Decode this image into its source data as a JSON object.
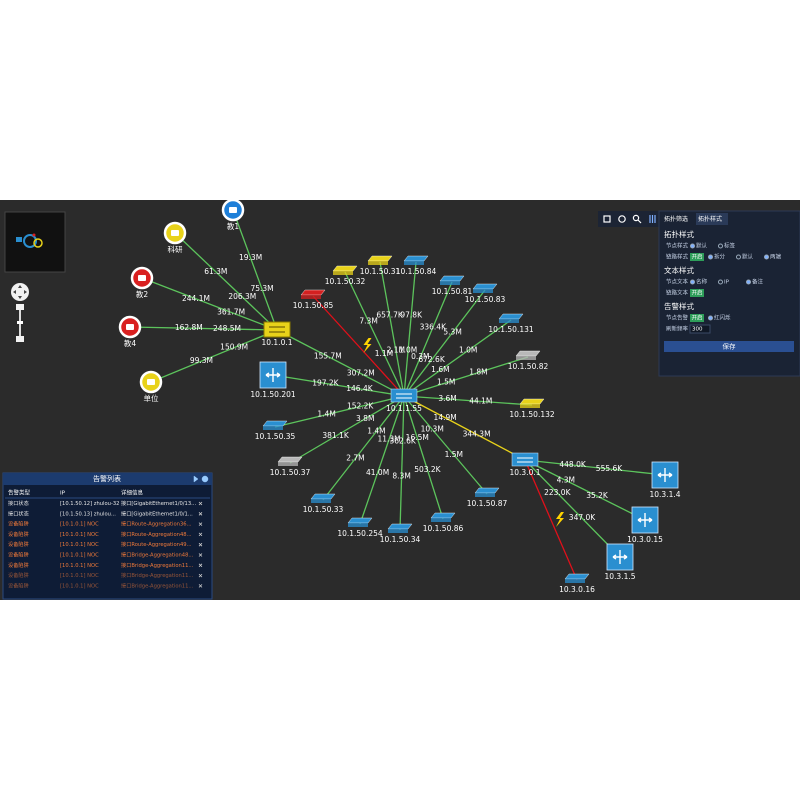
{
  "topology": {
    "nodes": [
      {
        "label": "教1",
        "icon": "circle",
        "color": "#1e7fd8"
      },
      {
        "label": "科研",
        "icon": "circle",
        "color": "#e8d21a"
      },
      {
        "label": "教2",
        "icon": "circle",
        "color": "#d92020"
      },
      {
        "label": "教4",
        "icon": "circle",
        "color": "#d92020"
      },
      {
        "label": "单位",
        "icon": "circle",
        "color": "#e8d21a"
      },
      {
        "label": "10.1.0.1",
        "icon": "router",
        "color": "#e8d21a"
      },
      {
        "label": "10.1.50.85",
        "icon": "switch",
        "color": "#d42020"
      },
      {
        "label": "10.1.50.32",
        "icon": "switch",
        "color": "#e8d21a"
      },
      {
        "label": "10.1.50.31",
        "icon": "switch",
        "color": "#e8d21a"
      },
      {
        "label": "10.1.50.84",
        "icon": "switch",
        "color": "#2a8fd0"
      },
      {
        "label": "10.1.50.81",
        "icon": "switch",
        "color": "#2a8fd0"
      },
      {
        "label": "10.1.50.83",
        "icon": "switch",
        "color": "#2a8fd0"
      },
      {
        "label": "10.1.50.131",
        "icon": "switch",
        "color": "#2a8fd0"
      },
      {
        "label": "10.1.50.82",
        "icon": "switch",
        "color": "#b8b8b8"
      },
      {
        "label": "10.1.50.132",
        "icon": "switch",
        "color": "#e8d21a"
      },
      {
        "label": "10.1.50.201",
        "icon": "l3",
        "color": "#2a8fd0"
      },
      {
        "label": "10.1.1.55",
        "icon": "core",
        "color": "#2a8fd0"
      },
      {
        "label": "10.1.50.35",
        "icon": "switch",
        "color": "#2a8fd0"
      },
      {
        "label": "10.1.50.37",
        "icon": "switch",
        "color": "#b8b8b8"
      },
      {
        "label": "10.1.50.33",
        "icon": "switch",
        "color": "#2a8fd0"
      },
      {
        "label": "10.1.50.254",
        "icon": "switch",
        "color": "#2a8fd0"
      },
      {
        "label": "10.1.50.34",
        "icon": "switch",
        "color": "#2a8fd0"
      },
      {
        "label": "10.1.50.86",
        "icon": "switch",
        "color": "#2a8fd0"
      },
      {
        "label": "10.1.50.87",
        "icon": "switch",
        "color": "#2a8fd0"
      },
      {
        "label": "10.3.0.1",
        "icon": "core",
        "color": "#2a8fd0"
      },
      {
        "label": "10.3.1.4",
        "icon": "l3",
        "color": "#2a8fd0"
      },
      {
        "label": "10.3.0.15",
        "icon": "l3",
        "color": "#2a8fd0"
      },
      {
        "label": "10.3.1.5",
        "icon": "l3",
        "color": "#2a8fd0"
      },
      {
        "label": "10.3.0.16",
        "icon": "switch",
        "color": "#2a8fd0"
      }
    ],
    "edges": [
      {
        "from": "教1",
        "to": "10.1.0.1",
        "color": "#5cc45c",
        "labels": [
          "19.3M",
          "75.3M"
        ]
      },
      {
        "from": "科研",
        "to": "10.1.0.1",
        "color": "#5cc45c",
        "labels": [
          "61.3M",
          "206.3M"
        ]
      },
      {
        "from": "教2",
        "to": "10.1.0.1",
        "color": "#5cc45c",
        "labels": [
          "244.1M",
          "361.7M"
        ]
      },
      {
        "from": "教4",
        "to": "10.1.0.1",
        "color": "#5cc45c",
        "labels": [
          "162.8M",
          "248.5M"
        ]
      },
      {
        "from": "单位",
        "to": "10.1.0.1",
        "color": "#5cc45c",
        "labels": [
          "99.3M",
          "150.9M"
        ]
      },
      {
        "from": "10.1.0.1",
        "to": "10.1.1.55",
        "color": "#5cc45c",
        "labels": [
          "155.7M",
          "307.2M"
        ]
      },
      {
        "from": "10.1.50.85",
        "to": "10.1.1.55",
        "color": "#e0101a",
        "labels": []
      },
      {
        "from": "10.1.50.32",
        "to": "10.1.1.55",
        "color": "#5cc45c",
        "labels": [
          "7.3M",
          "1.1M"
        ]
      },
      {
        "from": "10.1.50.31",
        "to": "10.1.1.55",
        "color": "#5cc45c",
        "labels": [
          "657.7K",
          "2.1M"
        ]
      },
      {
        "from": "10.1.50.84",
        "to": "10.1.1.55",
        "color": "#5cc45c",
        "labels": [
          "97.8K",
          "1.0M"
        ]
      },
      {
        "from": "10.1.50.81",
        "to": "10.1.1.55",
        "color": "#5cc45c",
        "labels": [
          "336.4K",
          "0.3M"
        ]
      },
      {
        "from": "10.1.50.83",
        "to": "10.1.1.55",
        "color": "#5cc45c",
        "labels": [
          "5.3M",
          "672.6K"
        ]
      },
      {
        "from": "10.1.50.131",
        "to": "10.1.1.55",
        "color": "#5cc45c",
        "labels": [
          "1.0M",
          "1.6M"
        ]
      },
      {
        "from": "10.1.50.82",
        "to": "10.1.1.55",
        "color": "#5cc45c",
        "labels": [
          "1.8M",
          "1.5M"
        ]
      },
      {
        "from": "10.1.50.132",
        "to": "10.1.1.55",
        "color": "#5cc45c",
        "labels": [
          "44.1M",
          "3.6M"
        ]
      },
      {
        "from": "10.3.0.1",
        "to": "10.1.1.55",
        "color": "#e8d21a",
        "labels": [
          "344.3M",
          "14.9M"
        ]
      },
      {
        "from": "10.1.50.201",
        "to": "10.1.1.55",
        "color": "#5cc45c",
        "labels": [
          "197.2K",
          "146.4K"
        ]
      },
      {
        "from": "10.1.50.35",
        "to": "10.1.1.55",
        "color": "#5cc45c",
        "labels": [
          "1.4M",
          "152.2K"
        ]
      },
      {
        "from": "10.1.50.37",
        "to": "10.1.1.55",
        "color": "#5cc45c",
        "labels": [
          "381.1K",
          "3.8M"
        ]
      },
      {
        "from": "10.1.50.33",
        "to": "10.1.1.55",
        "color": "#5cc45c",
        "labels": [
          "2.7M",
          "1.4M"
        ]
      },
      {
        "from": "10.1.50.254",
        "to": "10.1.1.55",
        "color": "#5cc45c",
        "labels": [
          "41.0M",
          "11.3M"
        ]
      },
      {
        "from": "10.1.50.34",
        "to": "10.1.1.55",
        "color": "#5cc45c",
        "labels": [
          "8.3M",
          "362.6K"
        ]
      },
      {
        "from": "10.1.50.86",
        "to": "10.1.1.55",
        "color": "#5cc45c",
        "labels": [
          "503.2K",
          "16.5M"
        ]
      },
      {
        "from": "10.1.50.87",
        "to": "10.1.1.55",
        "color": "#5cc45c",
        "labels": [
          "1.5M",
          "10.3M"
        ]
      },
      {
        "from": "10.3.1.4",
        "to": "10.3.0.1",
        "color": "#5cc45c",
        "labels": [
          "555.6K",
          "448.0K"
        ]
      },
      {
        "from": "10.3.0.15",
        "to": "10.3.0.1",
        "color": "#5cc45c",
        "labels": [
          "35.2K",
          "4.3M"
        ]
      },
      {
        "from": "10.3.1.5",
        "to": "10.3.0.1",
        "color": "#5cc45c",
        "labels": [
          "347.0K",
          "223.0K"
        ]
      },
      {
        "from": "10.3.0.16",
        "to": "10.3.0.1",
        "color": "#e0101a",
        "labels": []
      }
    ]
  },
  "style_panel": {
    "tabs": [
      "拓扑筛选",
      "拓扑样式"
    ],
    "sections": [
      {
        "title": "拓扑样式",
        "rows": [
          {
            "label": "节点样式",
            "options": [
              "默认",
              "标签"
            ]
          },
          {
            "label": "链路样式",
            "toggle": "开启",
            "options": [
              "拆分",
              "默认",
              "两端"
            ]
          }
        ]
      },
      {
        "title": "文本样式",
        "rows": [
          {
            "label": "节点文本",
            "options": [
              "名称",
              "IP",
              "备注"
            ]
          },
          {
            "label": "链路文本",
            "toggle": "开启"
          }
        ]
      },
      {
        "title": "告警样式",
        "rows": [
          {
            "label": "节点告警",
            "toggle": "开启",
            "options": [
              "红闪烁"
            ]
          },
          {
            "label": "刷新频率",
            "value": "300"
          }
        ]
      }
    ],
    "button": "保存"
  },
  "alarm_panel": {
    "title": "告警列表",
    "columns": [
      "告警类型",
      "IP",
      "详细信息"
    ],
    "rows": [
      [
        "接口状态",
        "[10.1.50.12] zhulou-32",
        "接口[GigabitEthernet1/0/13..."
      ],
      [
        "接口状态",
        "[10.1.50.13] zhulou...",
        "接口[GigabitEthernet1/0/1..."
      ],
      [
        "设备陷阱",
        "[10.1.0.1] NOC",
        "接口Route-Aggregation36..."
      ],
      [
        "设备陷阱",
        "[10.1.0.1] NOC",
        "接口Route-Aggregation48..."
      ],
      [
        "设备陷阱",
        "[10.1.0.1] NOC",
        "接口Route-Aggregation49..."
      ],
      [
        "设备陷阱",
        "[10.1.0.1] NOC",
        "接口Bridge-Aggregation48..."
      ],
      [
        "设备陷阱",
        "[10.1.0.1] NOC",
        "接口Bridge-Aggregation11..."
      ],
      [
        "设备陷阱",
        "[10.1.0.1] NOC",
        "接口Bridge-Aggregation11..."
      ],
      [
        "设备陷阱",
        "[10.1.0.1] NOC",
        "接口Bridge-Aggregation11..."
      ]
    ]
  }
}
